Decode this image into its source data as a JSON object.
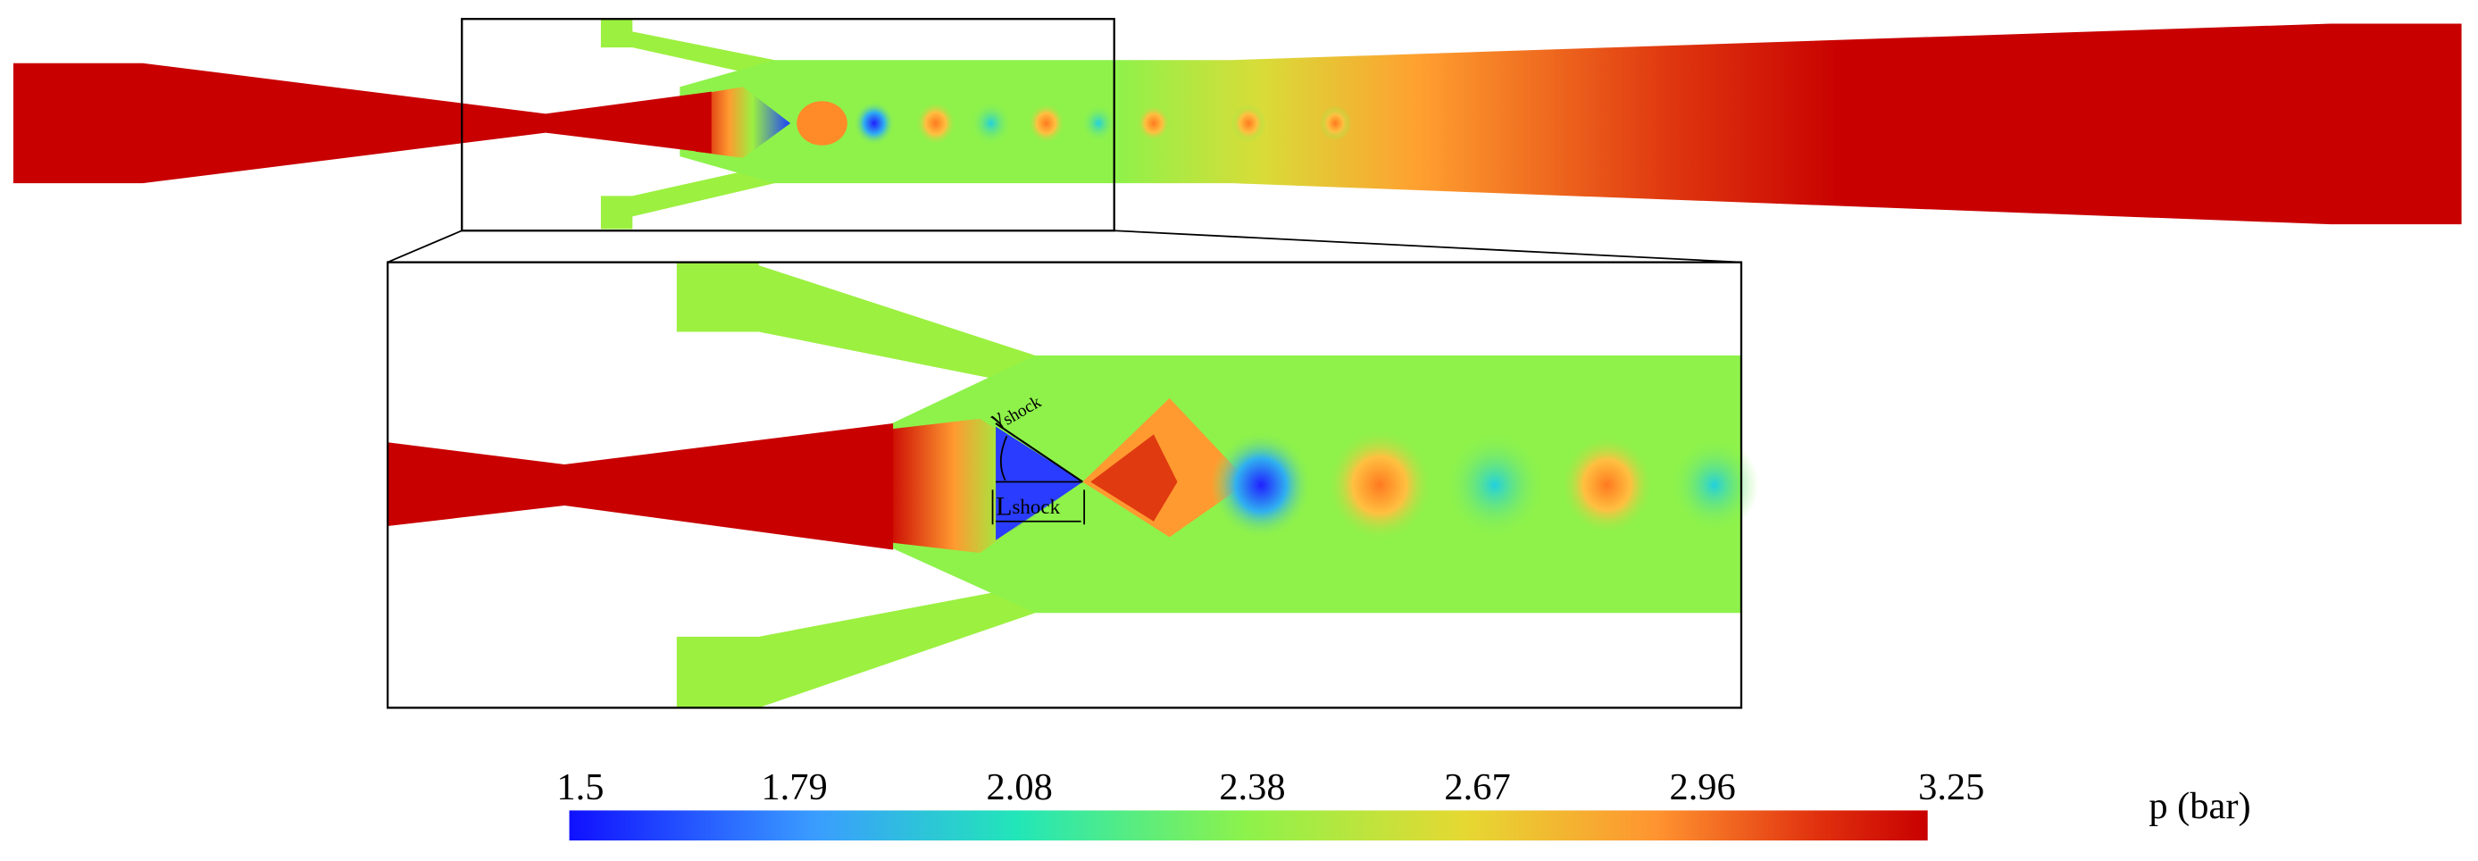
{
  "colorbar": {
    "label": "p (bar)",
    "ticks": [
      1.5,
      1.79,
      2.08,
      2.38,
      2.67,
      2.96,
      3.25
    ]
  },
  "annotations": [
    {
      "symbol": "γ",
      "subscript": "shock"
    },
    {
      "symbol": "L",
      "subscript": "shock"
    }
  ]
}
